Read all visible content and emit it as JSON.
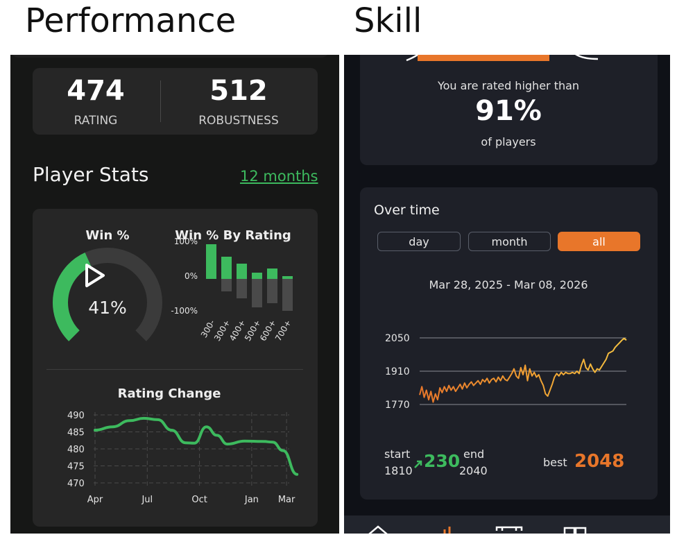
{
  "headings": {
    "left": "Performance",
    "right": "Skill"
  },
  "performance": {
    "rating": {
      "value": "474",
      "label": "RATING"
    },
    "robustness": {
      "value": "512",
      "label": "ROBUSTNESS"
    },
    "section_title": "Player Stats",
    "period_link": "12 months",
    "win_pct": {
      "title": "Win %",
      "value_text": "41%",
      "value": 41,
      "fill_color": "#3dba5e",
      "track_color": "#3b3b3b"
    },
    "win_by_rating": {
      "title": "Win % By Rating",
      "y_ticks": [
        "100%",
        "0%",
        "-100%"
      ],
      "categories": [
        "300-",
        "300+",
        "400+",
        "500+",
        "600+",
        "700+"
      ],
      "wins": [
        100,
        64,
        44,
        18,
        30,
        8
      ],
      "losses": [
        0,
        -36,
        -56,
        -82,
        -70,
        -92
      ],
      "win_color": "#3dba5e",
      "loss_color": "#4a4a4a"
    },
    "rating_change": {
      "title": "Rating Change",
      "y_ticks": [
        "490",
        "485",
        "480",
        "475",
        "470"
      ],
      "x_ticks": [
        "Apr",
        "Jul",
        "Oct",
        "Jan",
        "Mar"
      ],
      "ylim": [
        470,
        490
      ],
      "series": [
        {
          "x": 0,
          "y": 485.5
        },
        {
          "x": 0.5,
          "y": 486.5
        },
        {
          "x": 1,
          "y": 488.3
        },
        {
          "x": 1.4,
          "y": 489.0
        },
        {
          "x": 1.8,
          "y": 488.6
        },
        {
          "x": 2.2,
          "y": 485.5
        },
        {
          "x": 2.6,
          "y": 481.8
        },
        {
          "x": 2.85,
          "y": 481.7
        },
        {
          "x": 3.2,
          "y": 486.5
        },
        {
          "x": 3.5,
          "y": 484.0
        },
        {
          "x": 3.8,
          "y": 481.4
        },
        {
          "x": 4.3,
          "y": 482.3
        },
        {
          "x": 4.8,
          "y": 482.2
        },
        {
          "x": 5.1,
          "y": 482.0
        },
        {
          "x": 5.4,
          "y": 479.5
        },
        {
          "x": 5.8,
          "y": 472.5
        }
      ]
    }
  },
  "skill": {
    "rated_higher_prefix": "You are rated higher than",
    "percentile": "91%",
    "rated_higher_suffix": "of players",
    "over_time_title": "Over time",
    "tabs": [
      {
        "label": "day",
        "active": false
      },
      {
        "label": "month",
        "active": false
      },
      {
        "label": "all",
        "active": true
      }
    ],
    "date_range": "Mar 28, 2025 - Mar 08, 2026",
    "chart": {
      "y_ticks": [
        "2050",
        "1910",
        "1770"
      ],
      "ylim": [
        1770,
        2050
      ],
      "color_start": "#e8762a",
      "color_end": "#f5c242",
      "values": [
        1810,
        1845,
        1800,
        1830,
        1790,
        1825,
        1780,
        1815,
        1790,
        1840,
        1820,
        1845,
        1825,
        1850,
        1830,
        1845,
        1825,
        1840,
        1855,
        1835,
        1860,
        1840,
        1855,
        1865,
        1850,
        1860,
        1870,
        1855,
        1875,
        1865,
        1880,
        1860,
        1875,
        1880,
        1865,
        1885,
        1870,
        1890,
        1875,
        1870,
        1885,
        1900,
        1920,
        1890,
        1880,
        1925,
        1895,
        1935,
        1870,
        1920,
        1890,
        1905,
        1885,
        1895,
        1870,
        1850,
        1815,
        1805,
        1830,
        1855,
        1885,
        1900,
        1890,
        1905,
        1895,
        1905,
        1900,
        1900,
        1905,
        1900,
        1910,
        1900,
        1935,
        1960,
        1925,
        1915,
        1940,
        1920,
        1905,
        1920,
        1915,
        1930,
        1945,
        1960,
        1985,
        1990,
        1995,
        2010,
        2020,
        2030,
        2040,
        2048,
        2040
      ]
    },
    "start": {
      "label": "start",
      "value": "1810"
    },
    "change": {
      "value": "230",
      "color": "#3dba5e"
    },
    "end": {
      "label": "end",
      "value": "2040"
    },
    "best": {
      "label": "best",
      "value": "2048",
      "color": "#e8762a"
    }
  }
}
